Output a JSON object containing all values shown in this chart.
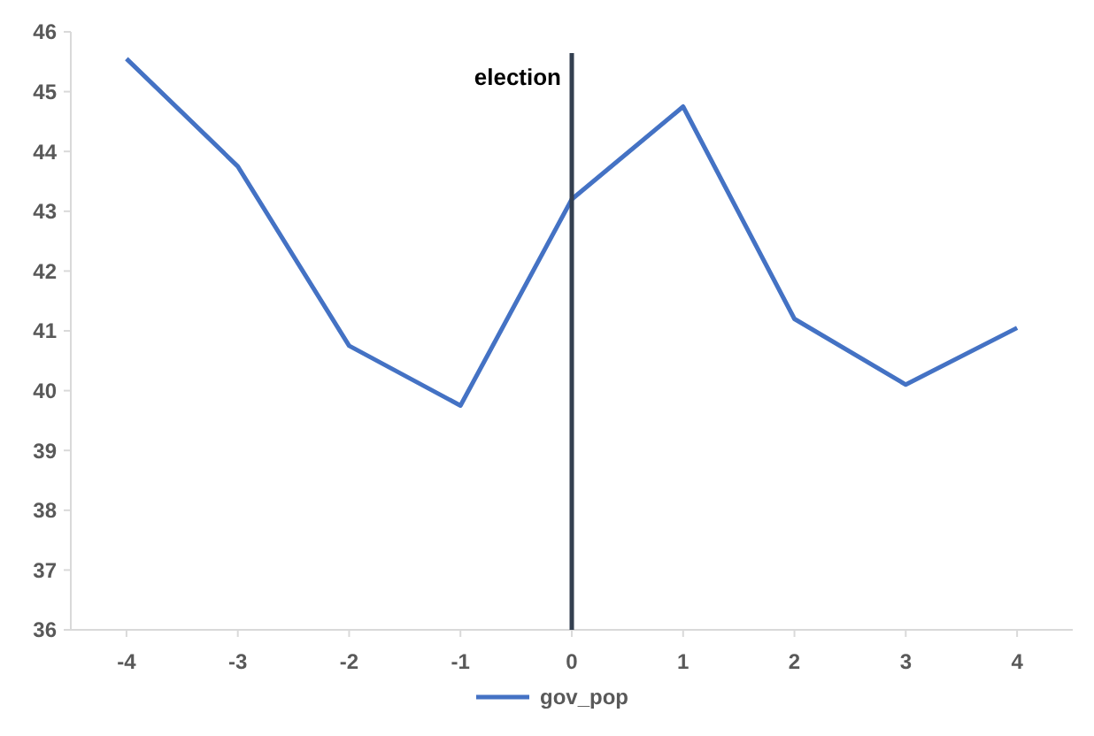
{
  "chart_data": {
    "type": "line",
    "x": [
      -4,
      -3,
      -2,
      -1,
      0,
      1,
      2,
      3,
      4
    ],
    "series": [
      {
        "name": "gov_pop",
        "color": "#4472c4",
        "values": [
          45.55,
          43.75,
          40.75,
          39.75,
          43.2,
          44.75,
          41.2,
          40.1,
          41.05
        ]
      }
    ],
    "xlim": [
      -4.5,
      4.5
    ],
    "xticks": [
      -4,
      -3,
      -2,
      -1,
      0,
      1,
      2,
      3,
      4
    ],
    "ylim": [
      36,
      46
    ],
    "yticks": [
      36,
      37,
      38,
      39,
      40,
      41,
      42,
      43,
      44,
      45,
      46
    ],
    "ref_lines": [
      {
        "axis": "x",
        "value": 0,
        "label": "election",
        "color": "#333f50"
      }
    ],
    "legend": "bottom",
    "grid": false,
    "marker": "none",
    "line_style": "solid"
  }
}
